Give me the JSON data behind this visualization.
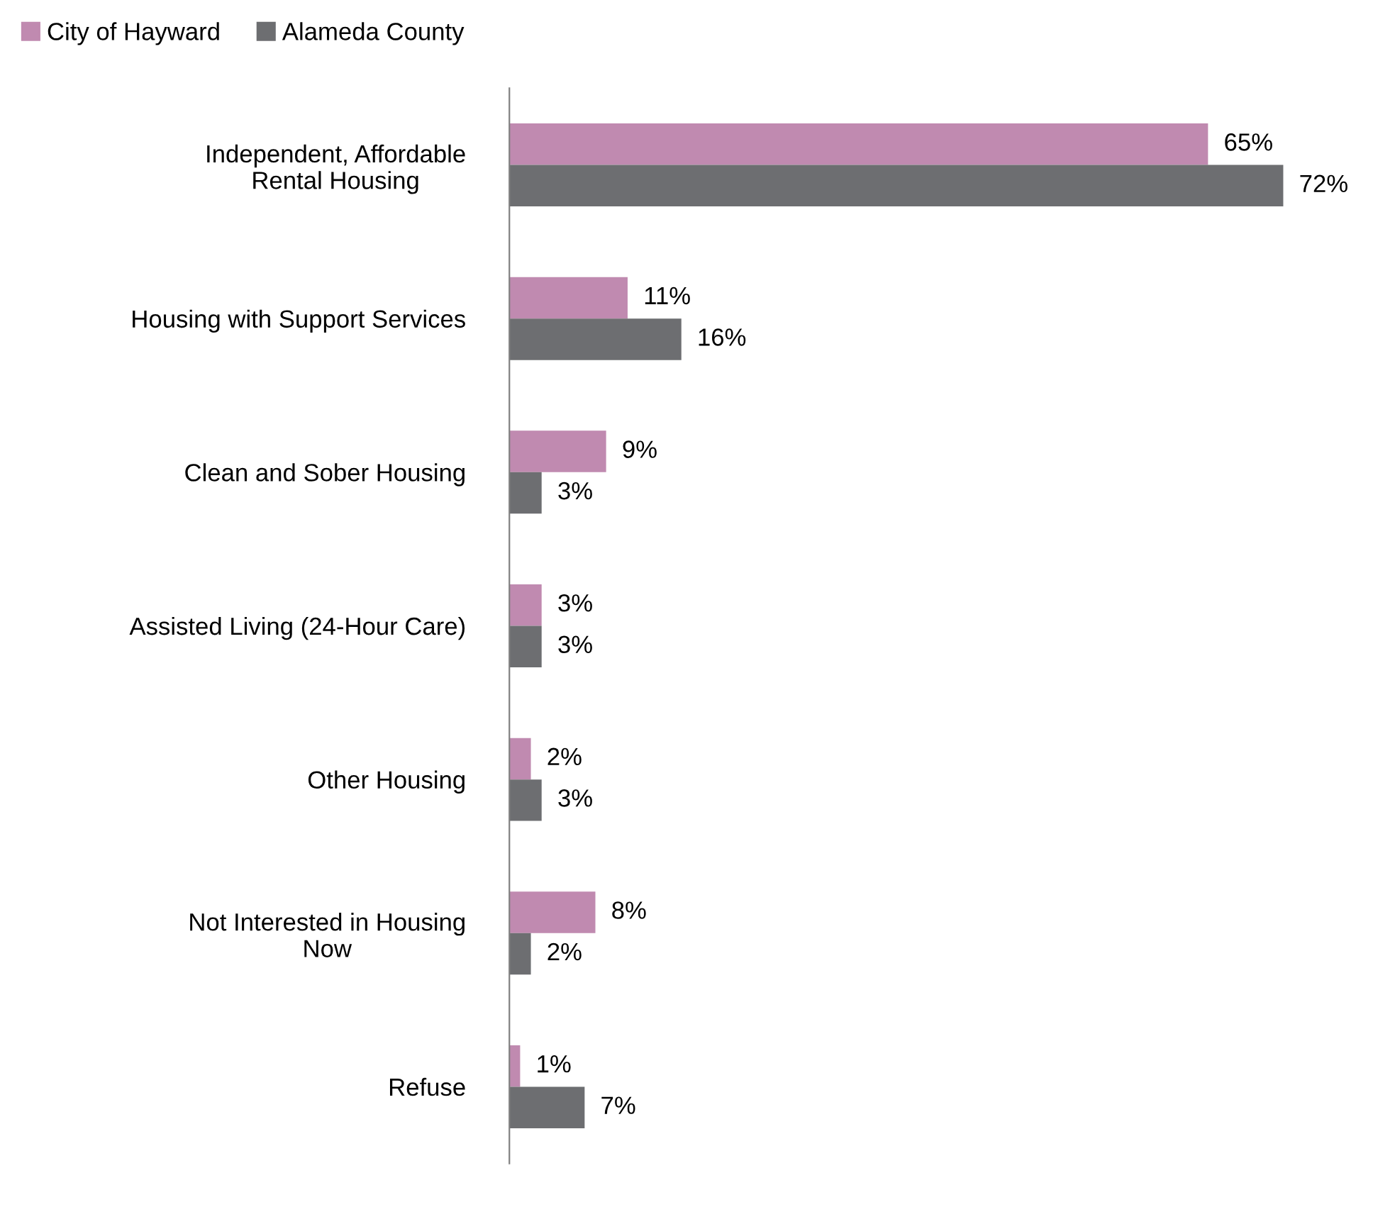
{
  "chart_data": {
    "type": "bar",
    "orientation": "horizontal",
    "categories": [
      "Independent, Affordable\nRental Housing",
      "Housing with Support Services",
      "Clean and Sober Housing",
      "Assisted Living (24-Hour Care)",
      "Other Housing",
      "Not Interested in Housing\nNow",
      "Refuse"
    ],
    "series": [
      {
        "name": "City of Hayward",
        "color": "#c08ab0",
        "values": [
          65,
          11,
          9,
          3,
          2,
          8,
          1
        ],
        "value_labels": [
          "65%",
          "11%",
          "9%",
          "3%",
          "2%",
          "8%",
          "1%"
        ]
      },
      {
        "name": "Alameda County",
        "color": "#6d6e71",
        "values": [
          72,
          16,
          3,
          3,
          3,
          2,
          7
        ],
        "value_labels": [
          "72%",
          "16%",
          "3%",
          "3%",
          "3%",
          "2%",
          "7%"
        ]
      }
    ],
    "legend": "top left",
    "grid": false
  }
}
